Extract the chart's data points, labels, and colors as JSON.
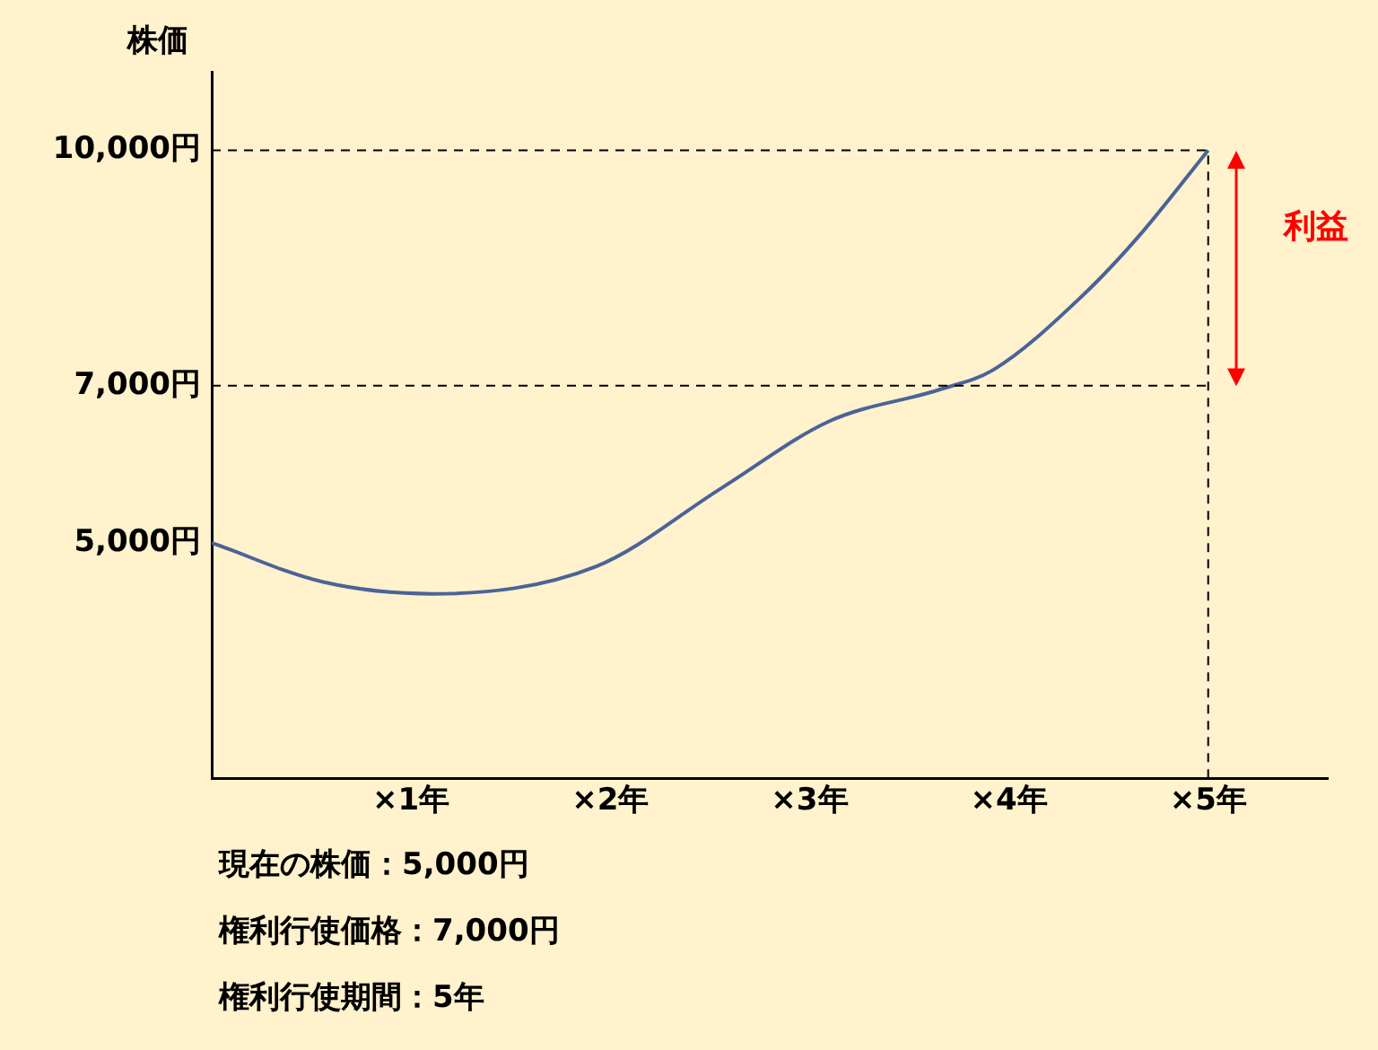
{
  "chart_data": {
    "type": "line",
    "ylabel": "株価",
    "x": [
      0,
      0.56,
      1.11,
      1.93,
      2.56,
      3.1,
      3.65,
      3.92,
      4.37,
      4.65,
      5
    ],
    "series": [
      {
        "color": "#4a6399",
        "values": [
          5000,
          4500,
          4350,
          4700,
          5700,
          6550,
          6950,
          7200,
          8150,
          8900,
          10000
        ]
      }
    ],
    "xlim": [
      0,
      5.6
    ],
    "xticks": [
      {
        "value": 1,
        "label": "×1年"
      },
      {
        "value": 2,
        "label": "×2年"
      },
      {
        "value": 3,
        "label": "×3年"
      },
      {
        "value": 4,
        "label": "×4年"
      },
      {
        "value": 5,
        "label": "×5年"
      }
    ],
    "ylim": [
      2000,
      11000
    ],
    "yticks": [
      {
        "value": 5000,
        "label": "5,000円"
      },
      {
        "value": 7000,
        "label": "7,000円"
      },
      {
        "value": 10000,
        "label": "10,000円"
      }
    ],
    "ref_lines": [
      {
        "axis": "y",
        "value": 10000,
        "line_style": "dashed"
      },
      {
        "axis": "y",
        "value": 7000,
        "line_style": "dashed"
      },
      {
        "axis": "x",
        "value": 5,
        "line_style": "dashed"
      }
    ],
    "annotations": [
      {
        "text": "利益",
        "x": 5,
        "y": 8500
      },
      "現在の株価：5,000円",
      "権利行使価格：7,000円",
      "権利行使期間：5年"
    ],
    "grid": false,
    "legend": false,
    "marker": "none",
    "line_style": "solid"
  }
}
